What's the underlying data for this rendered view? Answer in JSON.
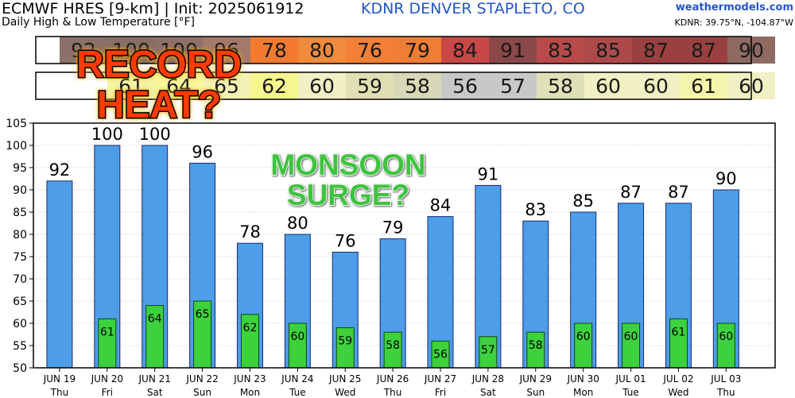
{
  "header": {
    "title": "ECMWF HRES [9-km] | Init: 2025061912",
    "subtitle": "Daily High & Low Temperature [°F]",
    "station": "KDNR DENVER STAPLETO, CO",
    "brand": "weathermodels.com",
    "coords": "KDNR: 39.75°N, -104.87°W"
  },
  "overlays": {
    "record_line1": "RECORD",
    "record_line2": "HEAT?",
    "monsoon_line1": "MONSOON",
    "monsoon_line2": "SURGE?"
  },
  "colors": {
    "high_bar": "#4d9de8",
    "low_bar": "#3dd13d",
    "record_text": "#ff3b00",
    "monsoon_text": "#3ec43e"
  },
  "chart_data": {
    "type": "bar",
    "categories": [
      "JUN 19",
      "JUN 20",
      "JUN 21",
      "JUN 22",
      "JUN 23",
      "JUN 24",
      "JUN 25",
      "JUN 26",
      "JUN 27",
      "JUN 28",
      "JUN 29",
      "JUN 30",
      "JUL 01",
      "JUL 02",
      "JUL 03"
    ],
    "days": [
      "Thu",
      "Fri",
      "Sat",
      "Sun",
      "Mon",
      "Tue",
      "Wed",
      "Thu",
      "Fri",
      "Sat",
      "Sun",
      "Mon",
      "Tue",
      "Wed",
      "Thu"
    ],
    "series": [
      {
        "values": [
          92,
          100,
          100,
          96,
          78,
          80,
          76,
          79,
          84,
          91,
          83,
          85,
          87,
          87,
          90
        ]
      },
      {
        "values": [
          null,
          61,
          64,
          65,
          62,
          60,
          59,
          58,
          56,
          57,
          58,
          60,
          60,
          61,
          60
        ]
      }
    ],
    "strip_high": [
      "92",
      "100",
      "100",
      "96",
      "78",
      "80",
      "76",
      "79",
      "84",
      "91",
      "83",
      "85",
      "87",
      "87",
      "90"
    ],
    "strip_low": [
      "",
      "61",
      "64",
      "65",
      "62",
      "60",
      "59",
      "58",
      "56",
      "57",
      "58",
      "60",
      "60",
      "61",
      "60"
    ],
    "strip_high_colors": [
      "#8a7068",
      "#8a6e66",
      "#8f7068",
      "#a3796b",
      "#f47a30",
      "#f08a3c",
      "#f47f36",
      "#f07d35",
      "#c84848",
      "#8a4848",
      "#b84a4a",
      "#ac4a4a",
      "#9a4040",
      "#9a4040",
      "#8f6a62"
    ],
    "strip_low_colors": [
      "#ffffff",
      "#f4f4a6",
      "#f7f79c",
      "#f2f2b4",
      "#f6f690",
      "#f0f0c4",
      "#e0e0b4",
      "#d8d8b8",
      "#c8c8c8",
      "#c8c8c8",
      "#e0e0b8",
      "#f0f0c4",
      "#f0f0c4",
      "#f4f4aa",
      "#f0f0c4"
    ],
    "ylim": [
      50,
      105
    ],
    "yticks": [
      50,
      55,
      60,
      65,
      70,
      75,
      80,
      85,
      90,
      95,
      100,
      105
    ],
    "grid": true
  }
}
